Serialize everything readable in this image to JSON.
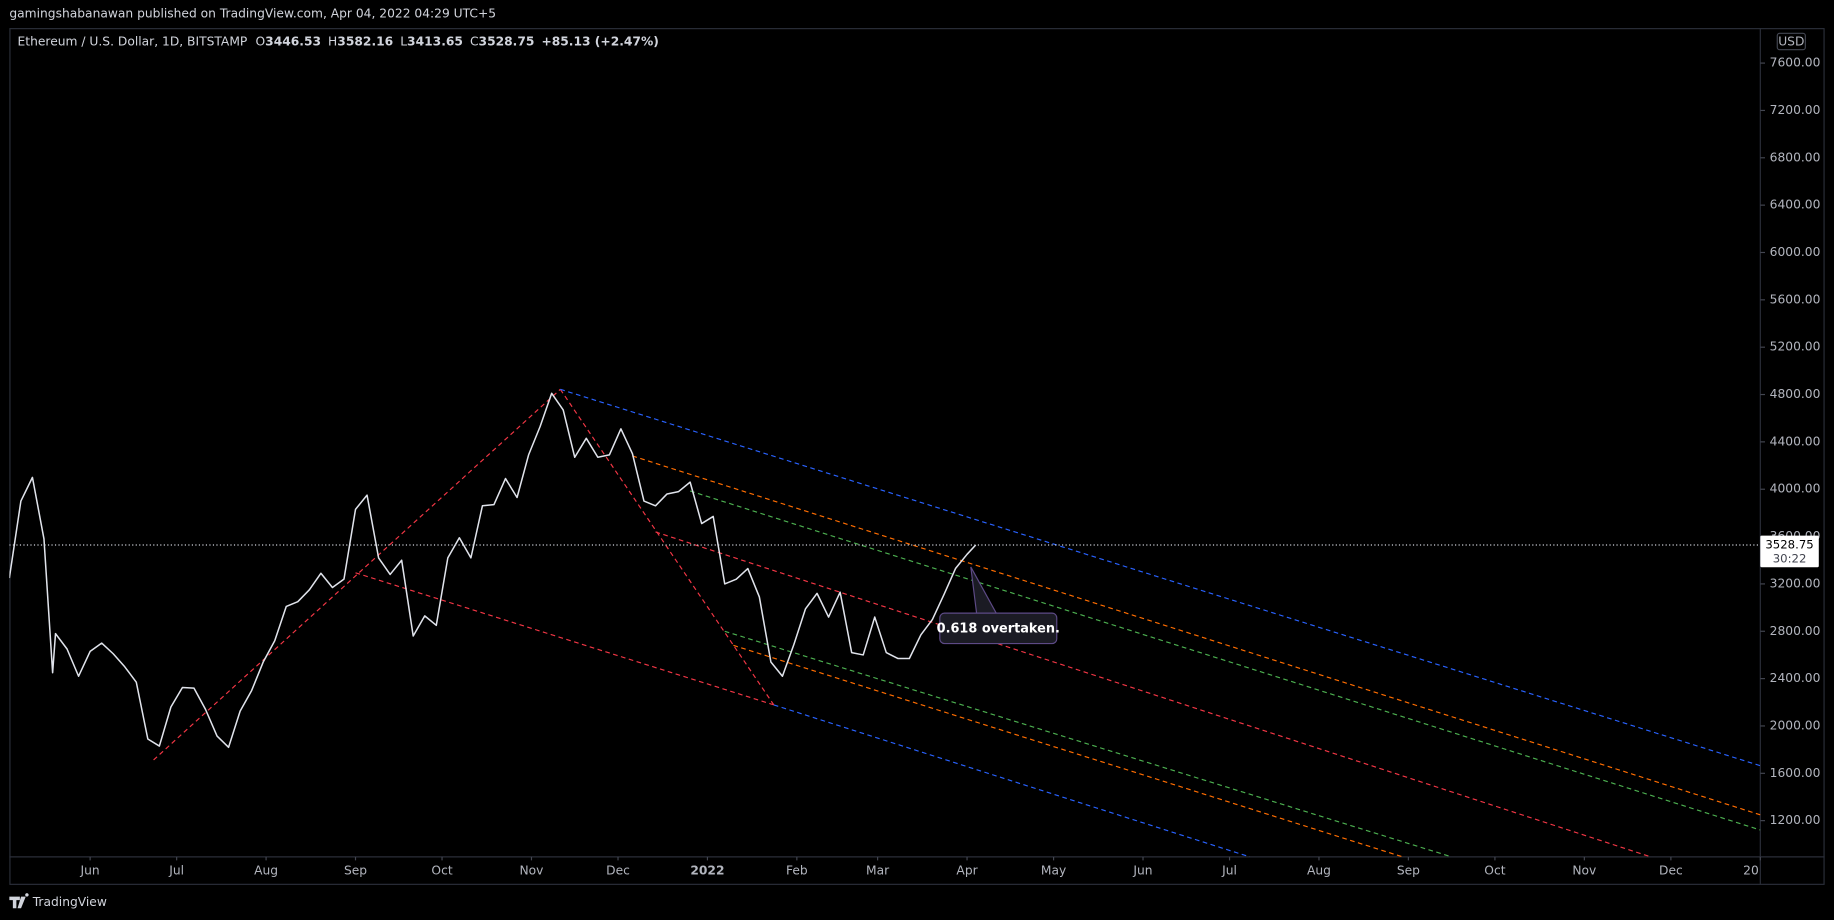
{
  "header": {
    "publisher": "gamingshabanawan published on TradingView.com, Apr 04, 2022 04:29 UTC+5"
  },
  "chart_data": {
    "type": "line",
    "title": "Ethereum / U.S. Dollar, 1D, BITSTAMP",
    "ohlc": [
      {
        "label": "O",
        "value": 3446.53
      },
      {
        "label": "H",
        "value": 3582.16
      },
      {
        "label": "L",
        "value": 3413.65
      },
      {
        "label": "C",
        "value": 3528.75
      }
    ],
    "change": "+85.13 (+2.47%)",
    "currency": "USD",
    "countdown": "30:22",
    "color": "#e0e3eb",
    "x": [
      3,
      7,
      11,
      15,
      18,
      19,
      23,
      27,
      31,
      35,
      39,
      43,
      47,
      51,
      55,
      59,
      63,
      67,
      71,
      75,
      79,
      83,
      87,
      91,
      95,
      99,
      103,
      107,
      111,
      115,
      119,
      123,
      127,
      131,
      135,
      139,
      143,
      147,
      151,
      155,
      159,
      163,
      167,
      171,
      175,
      179,
      183,
      187,
      191,
      195,
      199,
      203,
      207,
      211,
      215,
      219,
      223,
      227,
      231,
      235,
      239,
      243,
      247,
      251,
      255,
      259,
      263,
      267,
      271,
      275,
      279,
      283,
      287,
      291,
      295,
      299,
      303,
      307,
      311,
      315,
      319,
      323,
      327,
      331,
      335,
      338
    ],
    "values": [
      3250,
      3900,
      4100,
      3580,
      2450,
      2780,
      2650,
      2420,
      2630,
      2700,
      2610,
      2500,
      2370,
      1890,
      1830,
      2160,
      2325,
      2320,
      2140,
      1915,
      1820,
      2125,
      2300,
      2540,
      2720,
      3010,
      3050,
      3150,
      3290,
      3170,
      3240,
      3830,
      3950,
      3420,
      3280,
      3400,
      2760,
      2930,
      2850,
      3420,
      3590,
      3420,
      3860,
      3870,
      4090,
      3930,
      4290,
      4530,
      4810,
      4670,
      4270,
      4430,
      4270,
      4290,
      4510,
      4300,
      3900,
      3860,
      3960,
      3980,
      4060,
      3710,
      3770,
      3200,
      3240,
      3330,
      3090,
      2540,
      2420,
      2690,
      2990,
      3120,
      2920,
      3130,
      2620,
      2600,
      2920,
      2620,
      2570,
      2570,
      2770,
      2900,
      3110,
      3330,
      3450,
      3528.75
    ],
    "xlim": [
      3,
      610
    ],
    "ylim": [
      894,
      7896
    ],
    "xticks": [
      {
        "value": 31,
        "label": "Jun"
      },
      {
        "value": 61,
        "label": "Jul"
      },
      {
        "value": 92,
        "label": "Aug"
      },
      {
        "value": 123,
        "label": "Sep"
      },
      {
        "value": 153,
        "label": "Oct"
      },
      {
        "value": 184,
        "label": "Nov"
      },
      {
        "value": 214,
        "label": "Dec"
      },
      {
        "value": 245,
        "label": "2022"
      },
      {
        "value": 276,
        "label": "Feb"
      },
      {
        "value": 304,
        "label": "Mar"
      },
      {
        "value": 335,
        "label": "Apr"
      },
      {
        "value": 365,
        "label": "May"
      },
      {
        "value": 396,
        "label": "Jun"
      },
      {
        "value": 426,
        "label": "Jul"
      },
      {
        "value": 457,
        "label": "Aug"
      },
      {
        "value": 488,
        "label": "Sep"
      },
      {
        "value": 518,
        "label": "Oct"
      },
      {
        "value": 549,
        "label": "Nov"
      },
      {
        "value": 579,
        "label": "Dec"
      },
      {
        "value": 610,
        "label": "20"
      }
    ],
    "yticks": [
      {
        "value": 1200,
        "label": "1200.00"
      },
      {
        "value": 1600,
        "label": "1600.00"
      },
      {
        "value": 2000,
        "label": "2000.00"
      },
      {
        "value": 2400,
        "label": "2400.00"
      },
      {
        "value": 2800,
        "label": "2800.00"
      },
      {
        "value": 3200,
        "label": "3200.00"
      },
      {
        "value": 3600,
        "label": "3600.00"
      },
      {
        "value": 4000,
        "label": "4000.00"
      },
      {
        "value": 4400,
        "label": "4400.00"
      },
      {
        "value": 4800,
        "label": "4800.00"
      },
      {
        "value": 5200,
        "label": "5200.00"
      },
      {
        "value": 5600,
        "label": "5600.00"
      },
      {
        "value": 6000,
        "label": "6000.00"
      },
      {
        "value": 6400,
        "label": "6400.00"
      },
      {
        "value": 6800,
        "label": "6800.00"
      },
      {
        "value": 7200,
        "label": "7200.00"
      },
      {
        "value": 7600,
        "label": "7600.00"
      }
    ],
    "drawings": [
      {
        "color": "#f23645",
        "points": [
          [
            53,
            1713
          ],
          [
            194,
            4844
          ]
        ]
      },
      {
        "color": "#f23645",
        "points": [
          [
            194,
            4844
          ],
          [
            268,
            2178
          ]
        ]
      },
      {
        "color": "#f23645",
        "points": [
          [
            227,
            3639
          ],
          [
            572,
            894
          ]
        ]
      },
      {
        "color": "#f23645",
        "points": [
          [
            123,
            3294
          ],
          [
            268,
            2178
          ]
        ]
      },
      {
        "color": "#2962ff",
        "points": [
          [
            194,
            4844
          ],
          [
            610,
            1664
          ]
        ]
      },
      {
        "color": "#ff6d00",
        "points": [
          [
            219,
            4281
          ],
          [
            610,
            1249
          ]
        ]
      },
      {
        "color": "#4caf50",
        "points": [
          [
            239,
            3985
          ],
          [
            610,
            1121
          ]
        ]
      },
      {
        "color": "#4caf50",
        "points": [
          [
            251,
            2800
          ],
          [
            503,
            894
          ]
        ]
      },
      {
        "color": "#ff6d00",
        "points": [
          [
            254,
            2681
          ],
          [
            486,
            894
          ]
        ]
      },
      {
        "color": "#2962ff",
        "points": [
          [
            268,
            2178
          ],
          [
            433,
            894
          ]
        ]
      }
    ],
    "annotation": "0.618 overtaken."
  },
  "footer": {
    "brand": "TradingView"
  }
}
